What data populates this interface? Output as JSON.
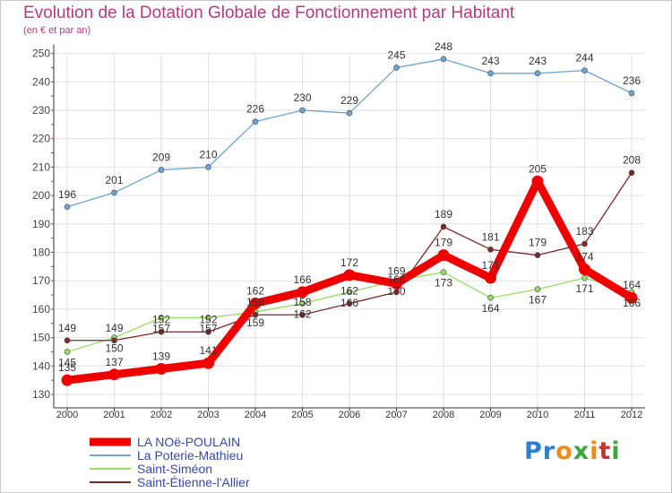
{
  "chart_data": {
    "type": "line",
    "title": "Evolution de la Dotation Globale de Fonctionnement par Habitant",
    "subtitle": "(en € et par an)",
    "xlabel": "",
    "ylabel": "",
    "ylim": [
      130,
      250
    ],
    "yticks": [
      130,
      140,
      150,
      160,
      170,
      180,
      190,
      200,
      210,
      220,
      230,
      240,
      250
    ],
    "categories": [
      "2000",
      "2001",
      "2002",
      "2003",
      "2004",
      "2005",
      "2006",
      "2007",
      "2008",
      "2009",
      "2010",
      "2011",
      "2012"
    ],
    "legend_position": "bottom-left",
    "series": [
      {
        "name": "LA NOë-POULAIN",
        "color": "#ee0000",
        "values": [
          135,
          137,
          139,
          141,
          162,
          166,
          172,
          169,
          179,
          171,
          205,
          174,
          164
        ]
      },
      {
        "name": "La Poterie-Mathieu",
        "color": "#6fa4d3",
        "values": [
          196,
          201,
          209,
          210,
          226,
          230,
          229,
          245,
          248,
          243,
          243,
          244,
          236
        ]
      },
      {
        "name": "Saint-Siméon",
        "color": "#99dd66",
        "values": [
          145,
          150,
          157,
          157,
          159,
          162,
          166,
          170,
          173,
          164,
          167,
          171,
          166
        ]
      },
      {
        "name": "Saint-Étienne-l'Allier",
        "color": "#7a2a2a",
        "values": [
          149,
          149,
          152,
          152,
          158,
          158,
          162,
          166,
          189,
          181,
          179,
          183,
          208
        ]
      }
    ]
  },
  "logo": {
    "letters": [
      {
        "ch": "P",
        "color": "#2d7fd0"
      },
      {
        "ch": "r",
        "color": "#2d7fd0"
      },
      {
        "ch": "o",
        "color": "#f08a1c"
      },
      {
        "ch": "x",
        "color": "#3aa83a"
      },
      {
        "ch": "i",
        "color": "#f08a1c"
      },
      {
        "ch": "t",
        "color": "#d32f2f"
      },
      {
        "ch": "i",
        "color": "#3aa83a"
      }
    ]
  }
}
